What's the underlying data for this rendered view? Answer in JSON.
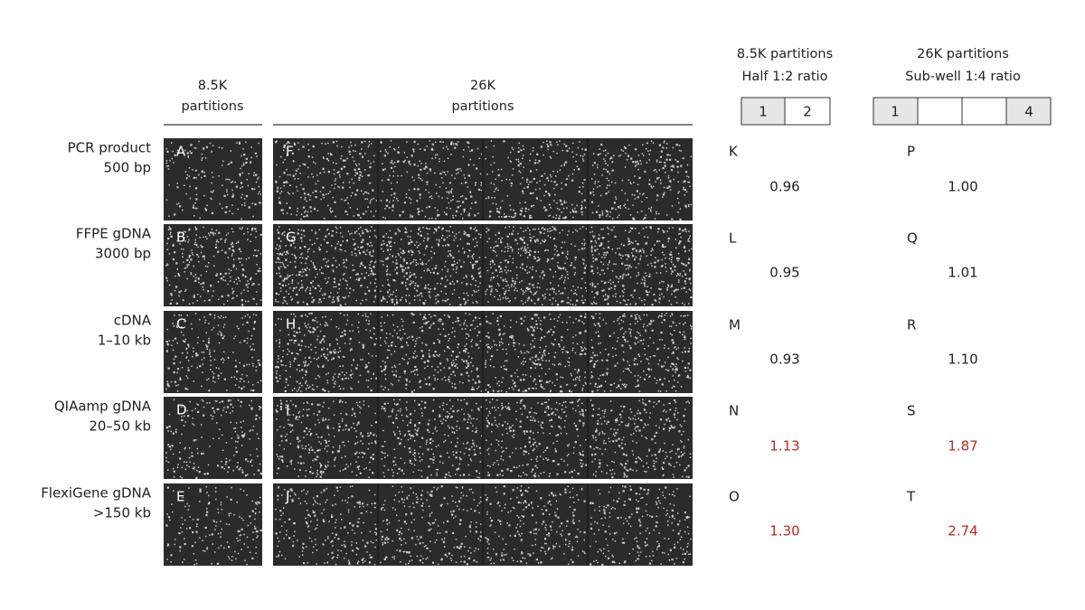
{
  "columns": [
    {
      "title": "8.5K",
      "subtitle": "partitions"
    },
    {
      "title": "26K",
      "subtitle": "partitions"
    }
  ],
  "rows": [
    {
      "label": [
        "PCR product",
        "500 bp"
      ],
      "panels": [
        "A",
        "F"
      ]
    },
    {
      "label": [
        "FFPE gDNA",
        "3000 bp"
      ],
      "panels": [
        "B",
        "G"
      ]
    },
    {
      "label": [
        "cDNA",
        "1–10 kb"
      ],
      "panels": [
        "C",
        "H"
      ]
    },
    {
      "label": [
        "QIAamp gDNA",
        "20–50 kb"
      ],
      "panels": [
        "D",
        "I"
      ]
    },
    {
      "label": [
        "FlexiGene gDNA",
        ">150 kb"
      ],
      "panels": [
        "E",
        "J"
      ]
    }
  ],
  "ratios": [
    {
      "title": "8.5K partitions",
      "subtitle": "Half 1:2 ratio",
      "boxes": [
        "1",
        "2"
      ],
      "results": [
        {
          "letter": "K",
          "value": "0.96"
        },
        {
          "letter": "L",
          "value": "0.95"
        },
        {
          "letter": "M",
          "value": "0.93"
        },
        {
          "letter": "N",
          "value": "1.13",
          "highlight": true
        },
        {
          "letter": "O",
          "value": "1.30",
          "highlight": true
        }
      ]
    },
    {
      "title": "26K partitions",
      "subtitle": "Sub-well 1:4 ratio",
      "boxes": [
        "1",
        "4"
      ],
      "results": [
        {
          "letter": "P",
          "value": "1.00"
        },
        {
          "letter": "Q",
          "value": "1.01"
        },
        {
          "letter": "R",
          "value": "1.10"
        },
        {
          "letter": "S",
          "value": "1.87",
          "highlight": true
        },
        {
          "letter": "T",
          "value": "2.74",
          "highlight": true
        }
      ]
    }
  ]
}
